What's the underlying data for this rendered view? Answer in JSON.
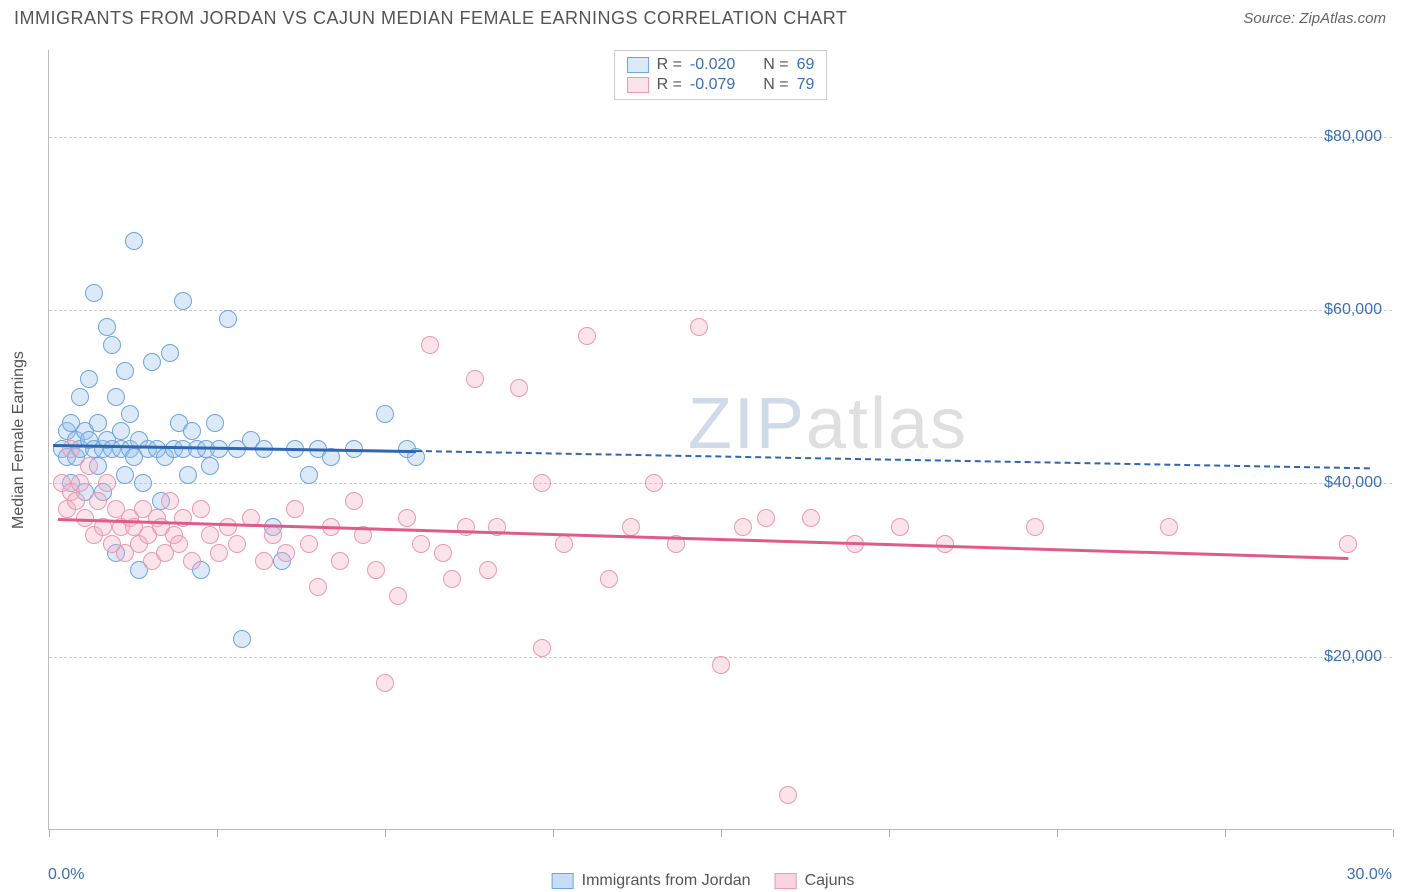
{
  "header": {
    "title": "IMMIGRANTS FROM JORDAN VS CAJUN MEDIAN FEMALE EARNINGS CORRELATION CHART",
    "source_prefix": "Source: ",
    "source_name": "ZipAtlas.com"
  },
  "watermark": {
    "z": "Z",
    "ip": "IP",
    "rest": "atlas"
  },
  "chart": {
    "type": "scatter",
    "background_color": "#ffffff",
    "grid_color": "#cccccc",
    "axis_color": "#bbbbbb",
    "tick_label_color": "#3b6fb6",
    "axis_title_color": "#555555",
    "xlim": [
      0,
      30
    ],
    "ylim": [
      0,
      90000
    ],
    "y_gridlines": [
      20000,
      40000,
      60000,
      80000
    ],
    "y_tick_labels": [
      "$20,000",
      "$40,000",
      "$60,000",
      "$80,000"
    ],
    "x_ticks": [
      0,
      3.75,
      7.5,
      11.25,
      15,
      18.75,
      22.5,
      26.25,
      30
    ],
    "x_min_label": "0.0%",
    "x_max_label": "30.0%",
    "y_axis_title": "Median Female Earnings",
    "marker_radius": 9,
    "marker_border_width": 1.2,
    "series": [
      {
        "id": "jordan",
        "label": "Immigrants from Jordan",
        "fill": "rgba(151,193,237,0.35)",
        "stroke": "#6fa5dd",
        "line_color": "#2f66b3",
        "trend": {
          "x1": 0.1,
          "y1": 44500,
          "x2": 8.2,
          "y2": 43800,
          "solid": true
        },
        "trend_ext": {
          "x1": 8.2,
          "y1": 43800,
          "x2": 29.5,
          "y2": 41800
        },
        "r_label": "R = ",
        "r_value": "-0.020",
        "n_label": "N = ",
        "n_value": "69",
        "points": [
          [
            0.3,
            44000
          ],
          [
            0.4,
            46000
          ],
          [
            0.4,
            43000
          ],
          [
            0.5,
            40000
          ],
          [
            0.5,
            47000
          ],
          [
            0.6,
            45000
          ],
          [
            0.6,
            43000
          ],
          [
            0.7,
            50000
          ],
          [
            0.7,
            44000
          ],
          [
            0.8,
            39000
          ],
          [
            0.8,
            46000
          ],
          [
            0.9,
            45000
          ],
          [
            0.9,
            52000
          ],
          [
            1.0,
            44000
          ],
          [
            1.0,
            62000
          ],
          [
            1.1,
            42000
          ],
          [
            1.1,
            47000
          ],
          [
            1.2,
            44000
          ],
          [
            1.2,
            39000
          ],
          [
            1.3,
            58000
          ],
          [
            1.3,
            45000
          ],
          [
            1.4,
            56000
          ],
          [
            1.4,
            44000
          ],
          [
            1.5,
            32000
          ],
          [
            1.5,
            50000
          ],
          [
            1.6,
            44000
          ],
          [
            1.6,
            46000
          ],
          [
            1.7,
            53000
          ],
          [
            1.7,
            41000
          ],
          [
            1.8,
            44000
          ],
          [
            1.8,
            48000
          ],
          [
            1.9,
            68000
          ],
          [
            1.9,
            43000
          ],
          [
            2.0,
            30000
          ],
          [
            2.0,
            45000
          ],
          [
            2.1,
            40000
          ],
          [
            2.2,
            44000
          ],
          [
            2.3,
            54000
          ],
          [
            2.4,
            44000
          ],
          [
            2.5,
            38000
          ],
          [
            2.6,
            43000
          ],
          [
            2.7,
            55000
          ],
          [
            2.8,
            44000
          ],
          [
            2.9,
            47000
          ],
          [
            3.0,
            61000
          ],
          [
            3.0,
            44000
          ],
          [
            3.1,
            41000
          ],
          [
            3.2,
            46000
          ],
          [
            3.3,
            44000
          ],
          [
            3.4,
            30000
          ],
          [
            3.5,
            44000
          ],
          [
            3.6,
            42000
          ],
          [
            3.7,
            47000
          ],
          [
            3.8,
            44000
          ],
          [
            4.0,
            59000
          ],
          [
            4.2,
            44000
          ],
          [
            4.3,
            22000
          ],
          [
            4.5,
            45000
          ],
          [
            4.8,
            44000
          ],
          [
            5.0,
            35000
          ],
          [
            5.2,
            31000
          ],
          [
            5.5,
            44000
          ],
          [
            5.8,
            41000
          ],
          [
            6.0,
            44000
          ],
          [
            6.3,
            43000
          ],
          [
            6.8,
            44000
          ],
          [
            7.5,
            48000
          ],
          [
            8.0,
            44000
          ],
          [
            8.2,
            43000
          ]
        ]
      },
      {
        "id": "cajuns",
        "label": "Cajuns",
        "fill": "rgba(244,176,196,0.35)",
        "stroke": "#e89ab2",
        "line_color": "#e05a8a",
        "trend": {
          "x1": 0.2,
          "y1": 36000,
          "x2": 29.0,
          "y2": 31500,
          "solid": true
        },
        "r_label": "R = ",
        "r_value": "-0.079",
        "n_label": "N = ",
        "n_value": "79",
        "points": [
          [
            0.3,
            40000
          ],
          [
            0.4,
            37000
          ],
          [
            0.5,
            44000
          ],
          [
            0.5,
            39000
          ],
          [
            0.6,
            38000
          ],
          [
            0.7,
            40000
          ],
          [
            0.8,
            36000
          ],
          [
            0.9,
            42000
          ],
          [
            1.0,
            34000
          ],
          [
            1.1,
            38000
          ],
          [
            1.2,
            35000
          ],
          [
            1.3,
            40000
          ],
          [
            1.4,
            33000
          ],
          [
            1.5,
            37000
          ],
          [
            1.6,
            35000
          ],
          [
            1.7,
            32000
          ],
          [
            1.8,
            36000
          ],
          [
            1.9,
            35000
          ],
          [
            2.0,
            33000
          ],
          [
            2.1,
            37000
          ],
          [
            2.2,
            34000
          ],
          [
            2.3,
            31000
          ],
          [
            2.4,
            36000
          ],
          [
            2.5,
            35000
          ],
          [
            2.6,
            32000
          ],
          [
            2.7,
            38000
          ],
          [
            2.8,
            34000
          ],
          [
            2.9,
            33000
          ],
          [
            3.0,
            36000
          ],
          [
            3.2,
            31000
          ],
          [
            3.4,
            37000
          ],
          [
            3.6,
            34000
          ],
          [
            3.8,
            32000
          ],
          [
            4.0,
            35000
          ],
          [
            4.2,
            33000
          ],
          [
            4.5,
            36000
          ],
          [
            4.8,
            31000
          ],
          [
            5.0,
            34000
          ],
          [
            5.3,
            32000
          ],
          [
            5.5,
            37000
          ],
          [
            5.8,
            33000
          ],
          [
            6.0,
            28000
          ],
          [
            6.3,
            35000
          ],
          [
            6.5,
            31000
          ],
          [
            6.8,
            38000
          ],
          [
            7.0,
            34000
          ],
          [
            7.3,
            30000
          ],
          [
            7.5,
            17000
          ],
          [
            7.8,
            27000
          ],
          [
            8.0,
            36000
          ],
          [
            8.3,
            33000
          ],
          [
            8.5,
            56000
          ],
          [
            8.8,
            32000
          ],
          [
            9.0,
            29000
          ],
          [
            9.3,
            35000
          ],
          [
            9.5,
            52000
          ],
          [
            9.8,
            30000
          ],
          [
            10.0,
            35000
          ],
          [
            10.5,
            51000
          ],
          [
            11.0,
            40000
          ],
          [
            11.0,
            21000
          ],
          [
            11.5,
            33000
          ],
          [
            12.0,
            57000
          ],
          [
            12.5,
            29000
          ],
          [
            13.0,
            35000
          ],
          [
            13.5,
            40000
          ],
          [
            14.0,
            33000
          ],
          [
            14.5,
            58000
          ],
          [
            15.0,
            19000
          ],
          [
            15.5,
            35000
          ],
          [
            16.0,
            36000
          ],
          [
            16.5,
            4000
          ],
          [
            17.0,
            36000
          ],
          [
            18.0,
            33000
          ],
          [
            19.0,
            35000
          ],
          [
            20.0,
            33000
          ],
          [
            22.0,
            35000
          ],
          [
            25.0,
            35000
          ],
          [
            29.0,
            33000
          ]
        ]
      }
    ]
  },
  "bottom_legend": [
    {
      "swatch_fill": "rgba(151,193,237,0.55)",
      "swatch_stroke": "#6fa5dd",
      "label": "Immigrants from Jordan"
    },
    {
      "swatch_fill": "rgba(244,176,196,0.55)",
      "swatch_stroke": "#e89ab2",
      "label": "Cajuns"
    }
  ]
}
